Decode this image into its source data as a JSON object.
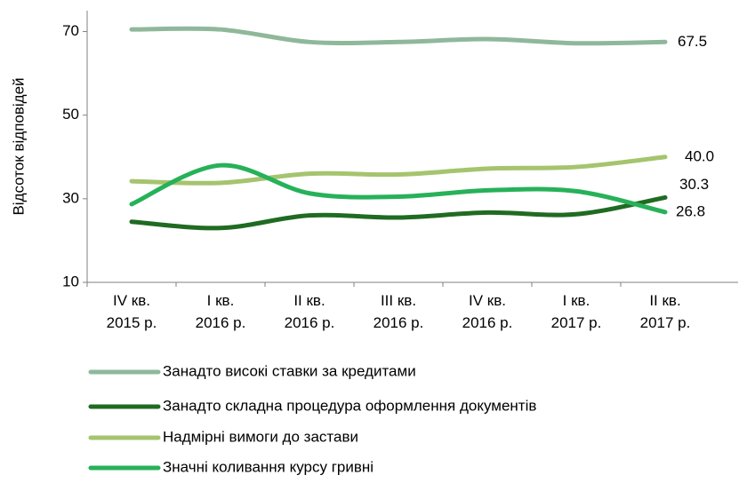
{
  "chart_data": {
    "type": "line",
    "categories": [
      "IV кв. 2015 р.",
      "I кв. 2016 р.",
      "II кв. 2016 р.",
      "III кв. 2016 р.",
      "IV кв. 2016 р.",
      "I кв. 2017 р.",
      "II кв. 2017 р."
    ],
    "y_label": "Відсоток відповідей",
    "ylim": [
      10,
      75
    ],
    "yticks": [
      10,
      30,
      50,
      70
    ],
    "series": [
      {
        "name": "Занадто високі ставки за кредитами",
        "color": "#8fb89b",
        "values": [
          70.5,
          70.5,
          67.5,
          67.5,
          68.2,
          67.2,
          67.5
        ],
        "value_labels": [
          null,
          null,
          null,
          null,
          null,
          null,
          "67.5"
        ]
      },
      {
        "name": "Занадто складна процедура оформлення документів",
        "color": "#1f6b22",
        "values": [
          24.5,
          23,
          26,
          25.5,
          26.7,
          26.3,
          30.3
        ],
        "value_labels": [
          null,
          null,
          null,
          null,
          null,
          null,
          "30.3"
        ]
      },
      {
        "name": "Надмірні вимоги до застави",
        "color": "#a5c46e",
        "values": [
          34.2,
          33.8,
          36,
          35.8,
          37.2,
          37.6,
          40.0
        ],
        "value_labels": [
          null,
          null,
          null,
          null,
          null,
          null,
          "40.0"
        ]
      },
      {
        "name": "Значні коливання курсу гривні",
        "color": "#27b159",
        "values": [
          28.7,
          38,
          31.3,
          30.5,
          32,
          31.8,
          26.8
        ],
        "value_labels": [
          null,
          null,
          null,
          null,
          null,
          null,
          "26.8"
        ]
      }
    ]
  }
}
